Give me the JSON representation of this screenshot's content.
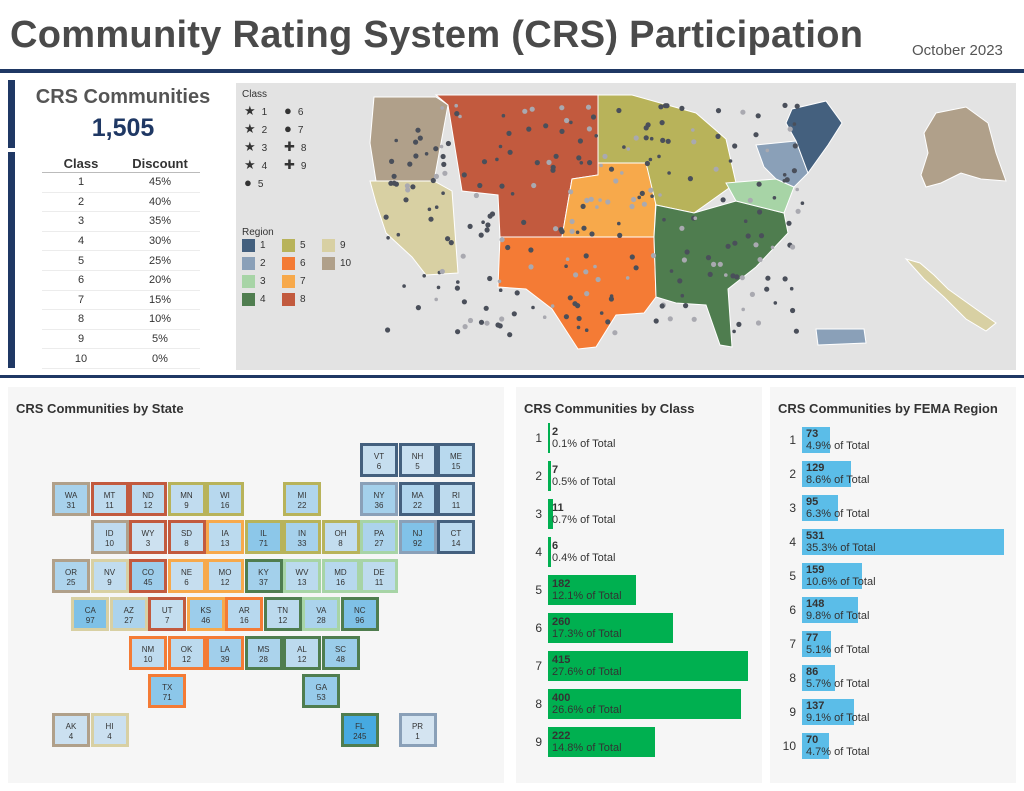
{
  "header": {
    "title": "Community Rating System (CRS) Participation",
    "date": "October 2023"
  },
  "kpi": {
    "label": "CRS Communities",
    "value": "1,505"
  },
  "discount_table": {
    "headers": [
      "Class",
      "Discount"
    ],
    "rows": [
      [
        "1",
        "45%"
      ],
      [
        "2",
        "40%"
      ],
      [
        "3",
        "35%"
      ],
      [
        "4",
        "30%"
      ],
      [
        "5",
        "25%"
      ],
      [
        "6",
        "20%"
      ],
      [
        "7",
        "15%"
      ],
      [
        "8",
        "10%"
      ],
      [
        "9",
        "5%"
      ],
      [
        "10",
        "0%"
      ]
    ]
  },
  "map": {
    "class_legend_title": "Class",
    "class_legend": [
      {
        "glyph": "★",
        "label": "1"
      },
      {
        "glyph": "★",
        "label": "2"
      },
      {
        "glyph": "★",
        "label": "3"
      },
      {
        "glyph": "★",
        "label": "4"
      },
      {
        "glyph": "●",
        "label": "5"
      },
      {
        "glyph": "●",
        "label": "6"
      },
      {
        "glyph": "●",
        "label": "7"
      },
      {
        "glyph": "✚",
        "label": "8"
      },
      {
        "glyph": "✚",
        "label": "9"
      }
    ],
    "region_legend_title": "Region",
    "region_legend": [
      {
        "label": "1",
        "color": "#44607e"
      },
      {
        "label": "2",
        "color": "#8aa0b8"
      },
      {
        "label": "3",
        "color": "#a7d4a6"
      },
      {
        "label": "4",
        "color": "#4f7d4f"
      },
      {
        "label": "5",
        "color": "#b8b35a"
      },
      {
        "label": "6",
        "color": "#f47b35"
      },
      {
        "label": "7",
        "color": "#f7a94b"
      },
      {
        "label": "8",
        "color": "#c25a3e"
      },
      {
        "label": "9",
        "color": "#d8d0a3"
      },
      {
        "label": "10",
        "color": "#b0a08a"
      }
    ]
  },
  "state_panel": {
    "title": "CRS Communities by State",
    "states": [
      {
        "abbr": "VT",
        "count": "6",
        "region": 1
      },
      {
        "abbr": "NH",
        "count": "5",
        "region": 1
      },
      {
        "abbr": "ME",
        "count": "15",
        "region": 1
      },
      {
        "abbr": "WA",
        "count": "31",
        "region": 10
      },
      {
        "abbr": "MT",
        "count": "11",
        "region": 8
      },
      {
        "abbr": "ND",
        "count": "12",
        "region": 8
      },
      {
        "abbr": "MN",
        "count": "9",
        "region": 5
      },
      {
        "abbr": "WI",
        "count": "16",
        "region": 5
      },
      {
        "abbr": "MI",
        "count": "22",
        "region": 5
      },
      {
        "abbr": "NY",
        "count": "36",
        "region": 2
      },
      {
        "abbr": "MA",
        "count": "22",
        "region": 1
      },
      {
        "abbr": "RI",
        "count": "11",
        "region": 1
      },
      {
        "abbr": "ID",
        "count": "10",
        "region": 10
      },
      {
        "abbr": "WY",
        "count": "3",
        "region": 8
      },
      {
        "abbr": "SD",
        "count": "8",
        "region": 8
      },
      {
        "abbr": "IA",
        "count": "13",
        "region": 7
      },
      {
        "abbr": "IL",
        "count": "71",
        "region": 5
      },
      {
        "abbr": "IN",
        "count": "33",
        "region": 5
      },
      {
        "abbr": "OH",
        "count": "8",
        "region": 5
      },
      {
        "abbr": "PA",
        "count": "27",
        "region": 3
      },
      {
        "abbr": "NJ",
        "count": "92",
        "region": 2
      },
      {
        "abbr": "CT",
        "count": "14",
        "region": 1
      },
      {
        "abbr": "OR",
        "count": "25",
        "region": 10
      },
      {
        "abbr": "NV",
        "count": "9",
        "region": 9
      },
      {
        "abbr": "CO",
        "count": "45",
        "region": 8
      },
      {
        "abbr": "NE",
        "count": "6",
        "region": 7
      },
      {
        "abbr": "MO",
        "count": "12",
        "region": 7
      },
      {
        "abbr": "KY",
        "count": "37",
        "region": 4
      },
      {
        "abbr": "WV",
        "count": "13",
        "region": 3
      },
      {
        "abbr": "MD",
        "count": "16",
        "region": 3
      },
      {
        "abbr": "DE",
        "count": "11",
        "region": 3
      },
      {
        "abbr": "CA",
        "count": "97",
        "region": 9
      },
      {
        "abbr": "AZ",
        "count": "27",
        "region": 9
      },
      {
        "abbr": "UT",
        "count": "7",
        "region": 8
      },
      {
        "abbr": "KS",
        "count": "46",
        "region": 7
      },
      {
        "abbr": "AR",
        "count": "16",
        "region": 6
      },
      {
        "abbr": "TN",
        "count": "12",
        "region": 4
      },
      {
        "abbr": "VA",
        "count": "28",
        "region": 3
      },
      {
        "abbr": "NC",
        "count": "96",
        "region": 4
      },
      {
        "abbr": "NM",
        "count": "10",
        "region": 6
      },
      {
        "abbr": "OK",
        "count": "12",
        "region": 6
      },
      {
        "abbr": "LA",
        "count": "39",
        "region": 6
      },
      {
        "abbr": "MS",
        "count": "28",
        "region": 4
      },
      {
        "abbr": "AL",
        "count": "12",
        "region": 4
      },
      {
        "abbr": "SC",
        "count": "48",
        "region": 4
      },
      {
        "abbr": "TX",
        "count": "71",
        "region": 6
      },
      {
        "abbr": "GA",
        "count": "53",
        "region": 4
      },
      {
        "abbr": "AK",
        "count": "4",
        "region": 10
      },
      {
        "abbr": "HI",
        "count": "4",
        "region": 9
      },
      {
        "abbr": "FL",
        "count": "245",
        "region": 4
      },
      {
        "abbr": "PR",
        "count": "1",
        "region": 2
      }
    ]
  },
  "chart_data": [
    {
      "type": "bar",
      "title": "CRS Communities by Class",
      "categories": [
        "1",
        "2",
        "3",
        "4",
        "5",
        "6",
        "7",
        "8",
        "9"
      ],
      "values": [
        2,
        7,
        11,
        6,
        182,
        260,
        415,
        400,
        222
      ],
      "labels": [
        "0.1% of Total",
        "0.5% of Total",
        "0.7% of Total",
        "0.4% of Total",
        "12.1% of Total",
        "17.3% of Total",
        "27.6% of Total",
        "26.6% of Total",
        "14.8% of Total"
      ],
      "color": "#00b050"
    },
    {
      "type": "bar",
      "title": "CRS Communities by FEMA Region",
      "categories": [
        "1",
        "2",
        "3",
        "4",
        "5",
        "6",
        "7",
        "8",
        "9",
        "10"
      ],
      "values": [
        73,
        129,
        95,
        531,
        159,
        148,
        77,
        86,
        137,
        70
      ],
      "labels": [
        "4.9% of Total",
        "8.6% of Total",
        "6.3% of Total",
        "35.3% of Total",
        "10.6% of Total",
        "9.8% of Total",
        "5.1% of Total",
        "5.7% of Total",
        "9.1% of Total",
        "4.7% of Total"
      ],
      "color": "#5bbde8"
    }
  ]
}
